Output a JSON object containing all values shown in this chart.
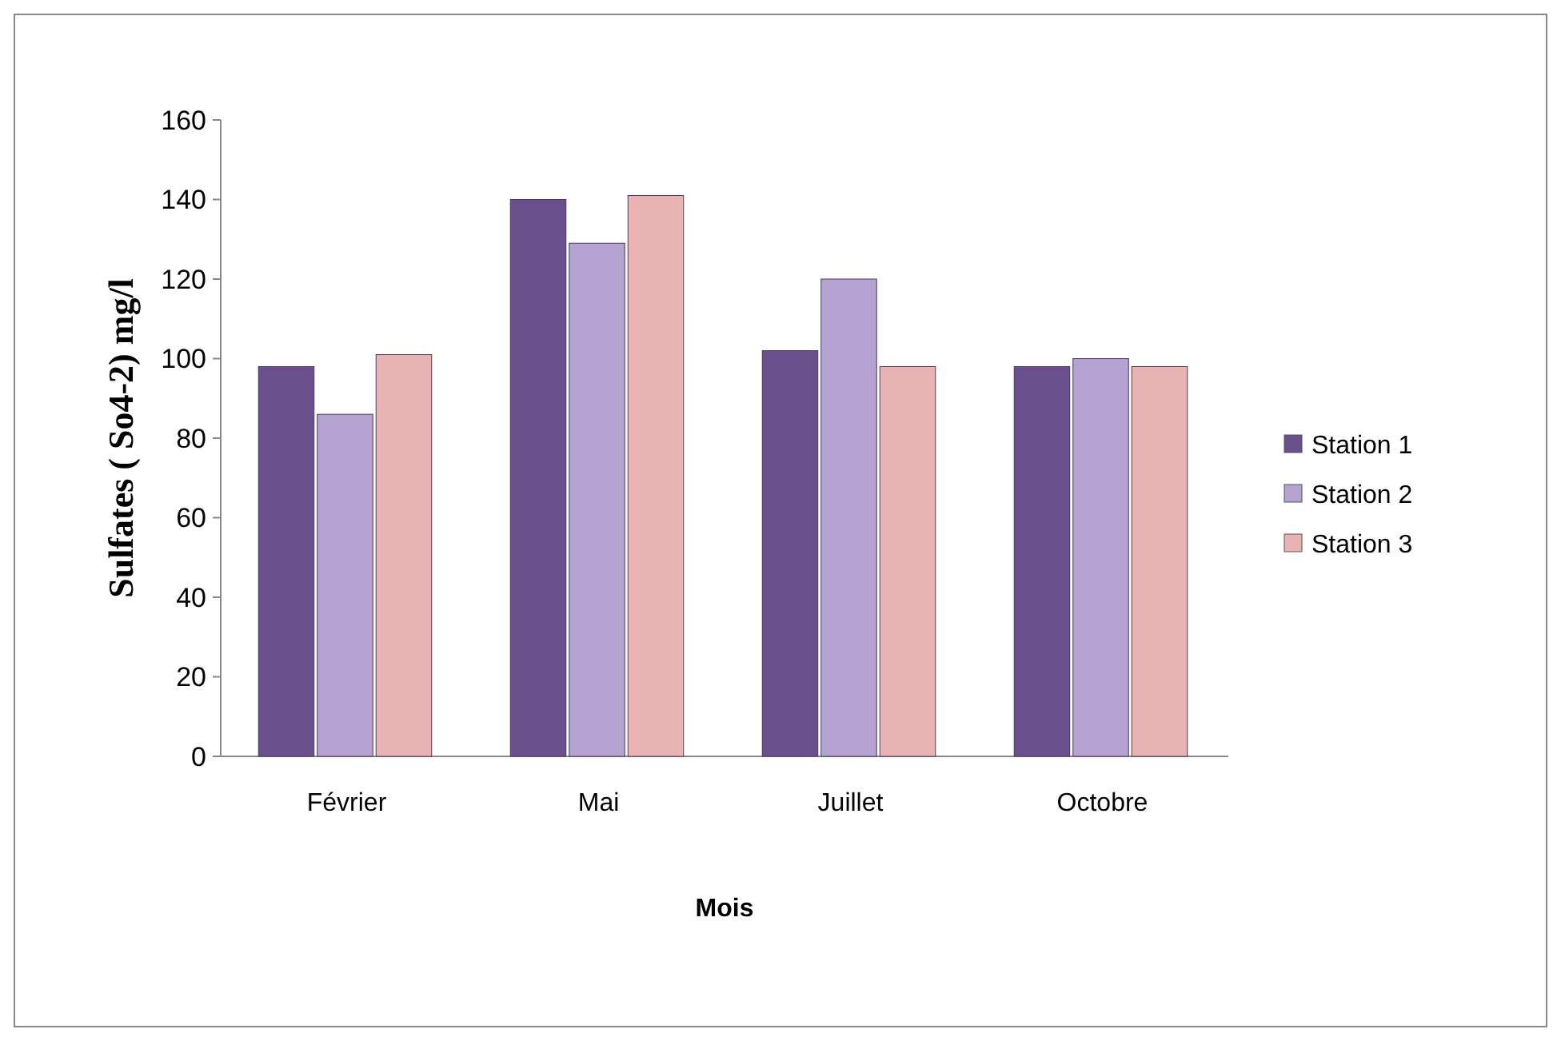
{
  "chart_data": {
    "type": "bar",
    "xlabel": "Mois",
    "ylabel": "Sulfates ( So4-2) mg/l",
    "categories": [
      "Février",
      "Mai",
      "Juillet",
      "Octobre"
    ],
    "series": [
      {
        "name": "Station 1",
        "color": "#694f8c",
        "values": [
          98,
          140,
          102,
          98
        ]
      },
      {
        "name": "Station 2",
        "color": "#b4a3d0",
        "values": [
          86,
          129,
          120,
          100
        ]
      },
      {
        "name": "Station 3",
        "color": "#e9b3b3",
        "values": [
          101,
          141,
          98,
          98
        ]
      }
    ],
    "ylim": [
      0,
      160
    ],
    "yticks": [
      0,
      20,
      40,
      60,
      80,
      100,
      120,
      140,
      160
    ],
    "grid": false,
    "legend": "right"
  }
}
